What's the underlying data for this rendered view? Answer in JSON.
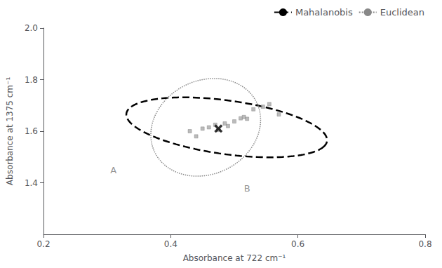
{
  "chart_data": {
    "type": "scatter",
    "title": "",
    "xlabel": "Absorbance at 722 cm⁻¹",
    "ylabel": "Absorbance at 1375 cm⁻¹",
    "xlim": [
      0.2,
      0.8
    ],
    "ylim": [
      1.2,
      2.0
    ],
    "xticks": [
      0.2,
      0.4,
      0.6,
      0.8
    ],
    "yticks": [
      1.4,
      1.6,
      1.8,
      {
        "value": 2.0,
        "label": "2.0"
      }
    ],
    "grid": false,
    "legend": "upper right",
    "series": [
      {
        "type": "scatter",
        "color": "#aaaaaa",
        "marker": "square",
        "x": [
          0.43,
          0.44,
          0.45,
          0.46,
          0.47,
          0.475,
          0.485,
          0.49,
          0.5,
          0.51,
          0.515,
          0.52,
          0.53,
          0.545,
          0.555,
          0.57
        ],
        "values": [
          1.6,
          1.58,
          1.61,
          1.615,
          1.625,
          1.605,
          1.63,
          1.62,
          1.638,
          1.65,
          1.655,
          1.648,
          1.685,
          1.695,
          1.705,
          1.665
        ]
      },
      {
        "type": "scatter",
        "color": "#000000",
        "marker": "x",
        "x": [
          0.475
        ],
        "values": [
          1.61
        ]
      },
      {
        "type": "ellipse",
        "name": "Mahalanobis",
        "color": "#000000",
        "line_style": "dashed",
        "cx": 0.488,
        "cy": 1.615,
        "width": 0.34,
        "height": 0.195,
        "angle": -27
      },
      {
        "type": "ellipse",
        "name": "Euclidean",
        "color": "#888888",
        "line_style": "dotted",
        "cx": 0.455,
        "cy": 1.615,
        "width": 0.17,
        "height": 0.38,
        "angle": -5
      }
    ],
    "annotations": [
      {
        "text": "A",
        "x": 0.31,
        "y": 1.448,
        "color": "#777777"
      },
      {
        "text": "B",
        "x": 0.52,
        "y": 1.378,
        "color": "#777777"
      }
    ]
  }
}
